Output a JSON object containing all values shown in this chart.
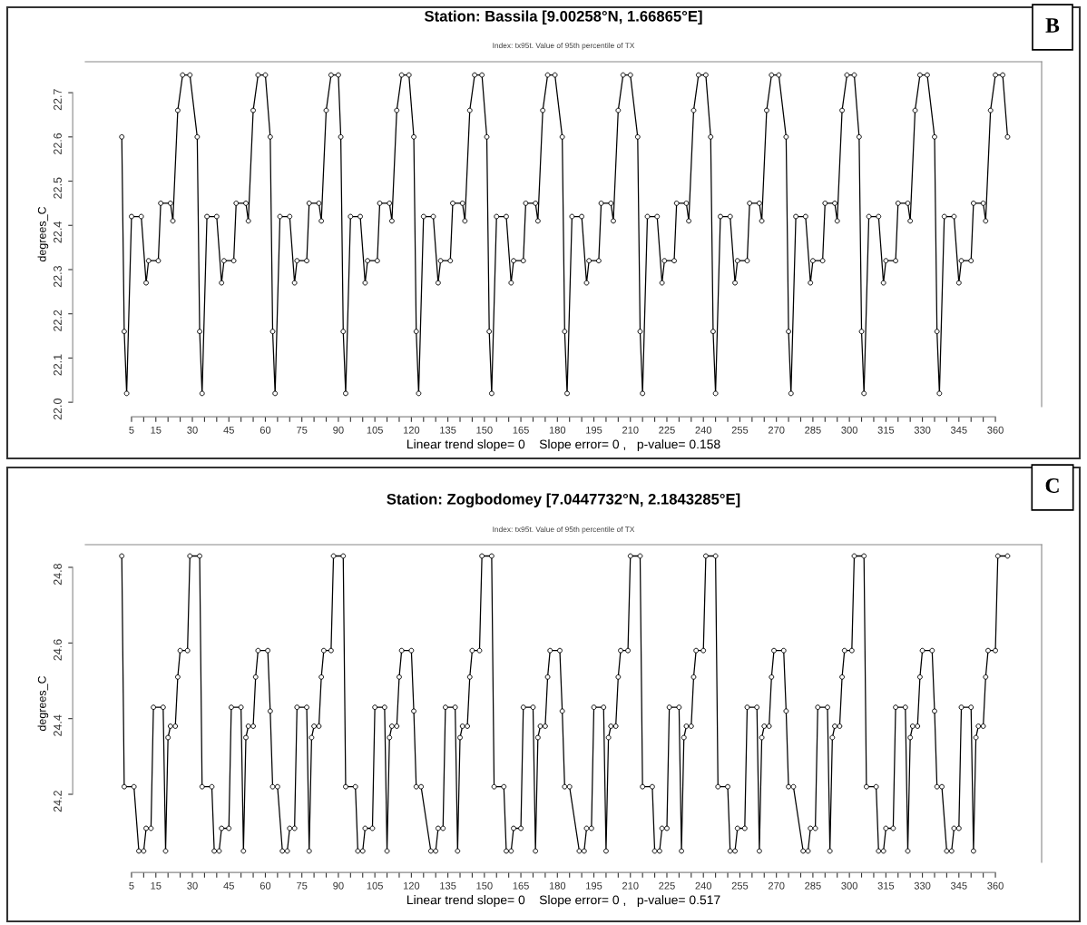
{
  "chart_data": [
    {
      "type": "line",
      "title": "Station: Bassila [9.00258°N, 1.66865°E]",
      "subtitle": "Index: tx95t. Value of 95th percentile of TX",
      "xlabel": "Linear trend slope= 0    Slope error= 0 ,   p-value= 0.158",
      "ylabel": "degrees_C",
      "annotations": [
        "B"
      ],
      "marker": "circle",
      "line_style": "solid",
      "grid": false,
      "xlim": [
        -14,
        379
      ],
      "ylim": [
        21.99,
        22.77
      ],
      "xticks": [
        5,
        {
          "value": 10,
          "label": null
        },
        15,
        {
          "value": 20,
          "label": null
        },
        {
          "value": 25,
          "label": null
        },
        30,
        {
          "value": 35,
          "label": null
        },
        {
          "value": 40,
          "label": null
        },
        45,
        {
          "value": 50,
          "label": null
        },
        {
          "value": 55,
          "label": null
        },
        60,
        {
          "value": 65,
          "label": null
        },
        {
          "value": 70,
          "label": null
        },
        75,
        {
          "value": 80,
          "label": null
        },
        {
          "value": 85,
          "label": null
        },
        90,
        {
          "value": 95,
          "label": null
        },
        {
          "value": 100,
          "label": null
        },
        105,
        {
          "value": 110,
          "label": null
        },
        {
          "value": 115,
          "label": null
        },
        120,
        {
          "value": 125,
          "label": null
        },
        {
          "value": 130,
          "label": null
        },
        135,
        {
          "value": 140,
          "label": null
        },
        {
          "value": 145,
          "label": null
        },
        150,
        {
          "value": 155,
          "label": null
        },
        {
          "value": 160,
          "label": null
        },
        165,
        {
          "value": 170,
          "label": null
        },
        {
          "value": 175,
          "label": null
        },
        180,
        {
          "value": 185,
          "label": null
        },
        {
          "value": 190,
          "label": null
        },
        195,
        {
          "value": 200,
          "label": null
        },
        {
          "value": 205,
          "label": null
        },
        210,
        {
          "value": 215,
          "label": null
        },
        {
          "value": 220,
          "label": null
        },
        225,
        {
          "value": 230,
          "label": null
        },
        {
          "value": 235,
          "label": null
        },
        240,
        {
          "value": 245,
          "label": null
        },
        {
          "value": 250,
          "label": null
        },
        255,
        {
          "value": 260,
          "label": null
        },
        {
          "value": 265,
          "label": null
        },
        270,
        {
          "value": 275,
          "label": null
        },
        {
          "value": 280,
          "label": null
        },
        285,
        {
          "value": 290,
          "label": null
        },
        {
          "value": 295,
          "label": null
        },
        300,
        {
          "value": 305,
          "label": null
        },
        {
          "value": 310,
          "label": null
        },
        315,
        {
          "value": 320,
          "label": null
        },
        {
          "value": 325,
          "label": null
        },
        330,
        {
          "value": 335,
          "label": null
        },
        {
          "value": 340,
          "label": null
        },
        345,
        {
          "value": 350,
          "label": null
        },
        {
          "value": 355,
          "label": null
        },
        360
      ],
      "yticks": [
        {
          "value": 22.0,
          "label": "22.0"
        },
        22.1,
        22.2,
        22.3,
        22.4,
        22.5,
        22.6,
        22.7
      ],
      "series": [
        {
          "color": "#000000",
          "x": [
            1,
            2,
            3,
            5,
            9,
            11,
            12,
            16,
            17,
            21,
            22,
            24,
            26,
            29,
            32,
            33,
            34,
            36,
            40,
            42,
            43,
            47,
            48,
            52,
            53,
            55,
            57,
            60,
            62,
            63,
            64,
            66,
            70,
            72,
            73,
            77,
            78,
            82,
            83,
            85,
            87,
            90,
            91,
            92,
            93,
            95,
            99,
            101,
            102,
            106,
            107,
            111,
            112,
            114,
            116,
            119,
            121,
            122,
            123,
            125,
            129,
            131,
            132,
            136,
            137,
            141,
            142,
            144,
            146,
            149,
            151,
            152,
            153,
            155,
            159,
            161,
            162,
            166,
            167,
            171,
            172,
            174,
            176,
            179,
            182,
            183,
            184,
            186,
            190,
            192,
            193,
            197,
            198,
            202,
            203,
            205,
            207,
            210,
            213,
            214,
            215,
            217,
            221,
            223,
            224,
            228,
            229,
            233,
            234,
            236,
            238,
            241,
            243,
            244,
            245,
            247,
            251,
            253,
            254,
            258,
            259,
            263,
            264,
            266,
            268,
            271,
            274,
            275,
            276,
            278,
            282,
            284,
            285,
            289,
            290,
            294,
            295,
            297,
            299,
            302,
            304,
            305,
            306,
            308,
            312,
            314,
            315,
            319,
            320,
            324,
            325,
            327,
            329,
            332,
            335,
            336,
            337,
            339,
            343,
            345,
            346,
            350,
            351,
            355,
            356,
            358,
            360,
            363,
            365
          ],
          "values": [
            22.6,
            22.16,
            22.02,
            22.42,
            22.42,
            22.27,
            22.32,
            22.32,
            22.45,
            22.45,
            22.41,
            22.66,
            22.74,
            22.74,
            22.6,
            22.16,
            22.02,
            22.42,
            22.42,
            22.27,
            22.32,
            22.32,
            22.45,
            22.45,
            22.41,
            22.66,
            22.74,
            22.74,
            22.6,
            22.16,
            22.02,
            22.42,
            22.42,
            22.27,
            22.32,
            22.32,
            22.45,
            22.45,
            22.41,
            22.66,
            22.74,
            22.74,
            22.6,
            22.16,
            22.02,
            22.42,
            22.42,
            22.27,
            22.32,
            22.32,
            22.45,
            22.45,
            22.41,
            22.66,
            22.74,
            22.74,
            22.6,
            22.16,
            22.02,
            22.42,
            22.42,
            22.27,
            22.32,
            22.32,
            22.45,
            22.45,
            22.41,
            22.66,
            22.74,
            22.74,
            22.6,
            22.16,
            22.02,
            22.42,
            22.42,
            22.27,
            22.32,
            22.32,
            22.45,
            22.45,
            22.41,
            22.66,
            22.74,
            22.74,
            22.6,
            22.16,
            22.02,
            22.42,
            22.42,
            22.27,
            22.32,
            22.32,
            22.45,
            22.45,
            22.41,
            22.66,
            22.74,
            22.74,
            22.6,
            22.16,
            22.02,
            22.42,
            22.42,
            22.27,
            22.32,
            22.32,
            22.45,
            22.45,
            22.41,
            22.66,
            22.74,
            22.74,
            22.6,
            22.16,
            22.02,
            22.42,
            22.42,
            22.27,
            22.32,
            22.32,
            22.45,
            22.45,
            22.41,
            22.66,
            22.74,
            22.74,
            22.6,
            22.16,
            22.02,
            22.42,
            22.42,
            22.27,
            22.32,
            22.32,
            22.45,
            22.45,
            22.41,
            22.66,
            22.74,
            22.74,
            22.6,
            22.16,
            22.02,
            22.42,
            22.42,
            22.27,
            22.32,
            22.32,
            22.45,
            22.45,
            22.41,
            22.66,
            22.74,
            22.74,
            22.6,
            22.16,
            22.02,
            22.42,
            22.42,
            22.27,
            22.32,
            22.32,
            22.45,
            22.45,
            22.41,
            22.66,
            22.74,
            22.74,
            22.6
          ]
        }
      ]
    },
    {
      "type": "line",
      "title": "Station: Zogbodomey [7.0447732°N, 2.1843285°E]",
      "subtitle": "Index: tx95t. Value of 95th percentile of TX",
      "xlabel": "Linear trend slope= 0    Slope error= 0 ,   p-value= 0.517",
      "ylabel": "degrees_C",
      "annotations": [
        "C"
      ],
      "marker": "circle",
      "line_style": "solid",
      "grid": false,
      "xlim": [
        -14,
        379
      ],
      "ylim": [
        24.02,
        24.86
      ],
      "xticks": [
        5,
        {
          "value": 10,
          "label": null
        },
        15,
        {
          "value": 20,
          "label": null
        },
        {
          "value": 25,
          "label": null
        },
        30,
        {
          "value": 35,
          "label": null
        },
        {
          "value": 40,
          "label": null
        },
        45,
        {
          "value": 50,
          "label": null
        },
        {
          "value": 55,
          "label": null
        },
        60,
        {
          "value": 65,
          "label": null
        },
        {
          "value": 70,
          "label": null
        },
        75,
        {
          "value": 80,
          "label": null
        },
        {
          "value": 85,
          "label": null
        },
        90,
        {
          "value": 95,
          "label": null
        },
        {
          "value": 100,
          "label": null
        },
        105,
        {
          "value": 110,
          "label": null
        },
        {
          "value": 115,
          "label": null
        },
        120,
        {
          "value": 125,
          "label": null
        },
        {
          "value": 130,
          "label": null
        },
        135,
        {
          "value": 140,
          "label": null
        },
        {
          "value": 145,
          "label": null
        },
        150,
        {
          "value": 155,
          "label": null
        },
        {
          "value": 160,
          "label": null
        },
        165,
        {
          "value": 170,
          "label": null
        },
        {
          "value": 175,
          "label": null
        },
        180,
        {
          "value": 185,
          "label": null
        },
        {
          "value": 190,
          "label": null
        },
        195,
        {
          "value": 200,
          "label": null
        },
        {
          "value": 205,
          "label": null
        },
        210,
        {
          "value": 215,
          "label": null
        },
        {
          "value": 220,
          "label": null
        },
        225,
        {
          "value": 230,
          "label": null
        },
        {
          "value": 235,
          "label": null
        },
        240,
        {
          "value": 245,
          "label": null
        },
        {
          "value": 250,
          "label": null
        },
        255,
        {
          "value": 260,
          "label": null
        },
        {
          "value": 265,
          "label": null
        },
        270,
        {
          "value": 275,
          "label": null
        },
        {
          "value": 280,
          "label": null
        },
        285,
        {
          "value": 290,
          "label": null
        },
        {
          "value": 295,
          "label": null
        },
        300,
        {
          "value": 305,
          "label": null
        },
        {
          "value": 310,
          "label": null
        },
        315,
        {
          "value": 320,
          "label": null
        },
        {
          "value": 325,
          "label": null
        },
        330,
        {
          "value": 335,
          "label": null
        },
        {
          "value": 340,
          "label": null
        },
        345,
        {
          "value": 350,
          "label": null
        },
        {
          "value": 355,
          "label": null
        },
        360
      ],
      "yticks": [
        24.2,
        24.4,
        24.6,
        24.8
      ],
      "series": [
        {
          "color": "#000000",
          "x": [
            1,
            2,
            6,
            8,
            10,
            11,
            13,
            14,
            18,
            19,
            20,
            21,
            23,
            24,
            25,
            28,
            29,
            33,
            34,
            38,
            39,
            41,
            42,
            45,
            46,
            50,
            51,
            52,
            53,
            55,
            56,
            57,
            61,
            62,
            63,
            65,
            67,
            69,
            70,
            72,
            73,
            77,
            78,
            79,
            80,
            82,
            83,
            84,
            87,
            88,
            92,
            93,
            97,
            98,
            100,
            101,
            104,
            105,
            109,
            110,
            111,
            112,
            114,
            115,
            116,
            120,
            121,
            122,
            124,
            128,
            130,
            131,
            133,
            134,
            138,
            139,
            140,
            141,
            143,
            144,
            145,
            148,
            149,
            153,
            154,
            158,
            159,
            161,
            162,
            165,
            166,
            170,
            171,
            172,
            173,
            175,
            176,
            177,
            181,
            182,
            183,
            185,
            189,
            191,
            192,
            194,
            195,
            199,
            200,
            201,
            202,
            204,
            205,
            206,
            209,
            210,
            214,
            215,
            219,
            220,
            222,
            223,
            225,
            226,
            230,
            231,
            232,
            233,
            235,
            236,
            237,
            240,
            241,
            245,
            246,
            250,
            251,
            253,
            254,
            257,
            258,
            262,
            263,
            264,
            265,
            267,
            268,
            269,
            273,
            274,
            275,
            277,
            281,
            283,
            284,
            286,
            287,
            291,
            292,
            293,
            294,
            296,
            297,
            298,
            301,
            302,
            306,
            307,
            311,
            312,
            314,
            315,
            318,
            319,
            323,
            324,
            325,
            326,
            328,
            329,
            330,
            334,
            335,
            336,
            338,
            340,
            342,
            343,
            345,
            346,
            350,
            351,
            352,
            353,
            355,
            356,
            357,
            360,
            361,
            365
          ],
          "values": [
            24.83,
            24.22,
            24.22,
            24.05,
            24.05,
            24.11,
            24.11,
            24.43,
            24.43,
            24.05,
            24.35,
            24.38,
            24.38,
            24.51,
            24.58,
            24.58,
            24.83,
            24.83,
            24.22,
            24.22,
            24.05,
            24.05,
            24.11,
            24.11,
            24.43,
            24.43,
            24.05,
            24.35,
            24.38,
            24.38,
            24.51,
            24.58,
            24.58,
            24.42,
            24.22,
            24.22,
            24.05,
            24.05,
            24.11,
            24.11,
            24.43,
            24.43,
            24.05,
            24.35,
            24.38,
            24.38,
            24.51,
            24.58,
            24.58,
            24.83,
            24.83,
            24.22,
            24.22,
            24.05,
            24.05,
            24.11,
            24.11,
            24.43,
            24.43,
            24.05,
            24.35,
            24.38,
            24.38,
            24.51,
            24.58,
            24.58,
            24.42,
            24.22,
            24.22,
            24.05,
            24.05,
            24.11,
            24.11,
            24.43,
            24.43,
            24.05,
            24.35,
            24.38,
            24.38,
            24.51,
            24.58,
            24.58,
            24.83,
            24.83,
            24.22,
            24.22,
            24.05,
            24.05,
            24.11,
            24.11,
            24.43,
            24.43,
            24.05,
            24.35,
            24.38,
            24.38,
            24.51,
            24.58,
            24.58,
            24.42,
            24.22,
            24.22,
            24.05,
            24.05,
            24.11,
            24.11,
            24.43,
            24.43,
            24.05,
            24.35,
            24.38,
            24.38,
            24.51,
            24.58,
            24.58,
            24.83,
            24.83,
            24.22,
            24.22,
            24.05,
            24.05,
            24.11,
            24.11,
            24.43,
            24.43,
            24.05,
            24.35,
            24.38,
            24.38,
            24.51,
            24.58,
            24.58,
            24.83,
            24.83,
            24.22,
            24.22,
            24.05,
            24.05,
            24.11,
            24.11,
            24.43,
            24.43,
            24.05,
            24.35,
            24.38,
            24.38,
            24.51,
            24.58,
            24.58,
            24.42,
            24.22,
            24.22,
            24.05,
            24.05,
            24.11,
            24.11,
            24.43,
            24.43,
            24.05,
            24.35,
            24.38,
            24.38,
            24.51,
            24.58,
            24.58,
            24.83,
            24.83,
            24.22,
            24.22,
            24.05,
            24.05,
            24.11,
            24.11,
            24.43,
            24.43,
            24.05,
            24.35,
            24.38,
            24.38,
            24.51,
            24.58,
            24.58,
            24.42,
            24.22,
            24.22,
            24.05,
            24.05,
            24.11,
            24.11,
            24.43,
            24.43,
            24.05,
            24.35,
            24.38,
            24.38,
            24.51,
            24.58,
            24.58,
            24.83,
            24.83
          ]
        }
      ]
    }
  ]
}
